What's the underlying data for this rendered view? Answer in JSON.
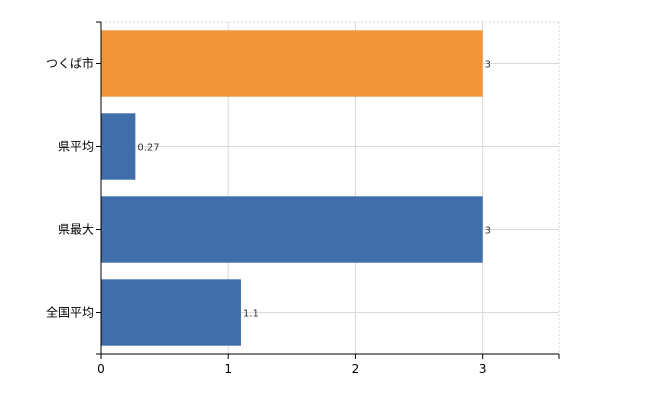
{
  "chart_data": {
    "type": "bar",
    "orientation": "horizontal",
    "categories": [
      "つくば市",
      "県平均",
      "県最大",
      "全国平均"
    ],
    "values": [
      3,
      0.27,
      3,
      1.1
    ],
    "data_labels": [
      "3",
      "0.27",
      "3",
      "1.1"
    ],
    "xlim": [
      0,
      3.6
    ],
    "x_ticks": [
      0,
      1,
      2,
      3
    ],
    "x_tick_labels": [
      "0",
      "1",
      "2",
      "3"
    ],
    "grid": true,
    "legend": "none",
    "colors": {
      "highlight": "#f0953a",
      "default": "#3f6ea9",
      "grid": "#d9d9d9",
      "axis": "#000000"
    },
    "highlight_index": 0
  }
}
